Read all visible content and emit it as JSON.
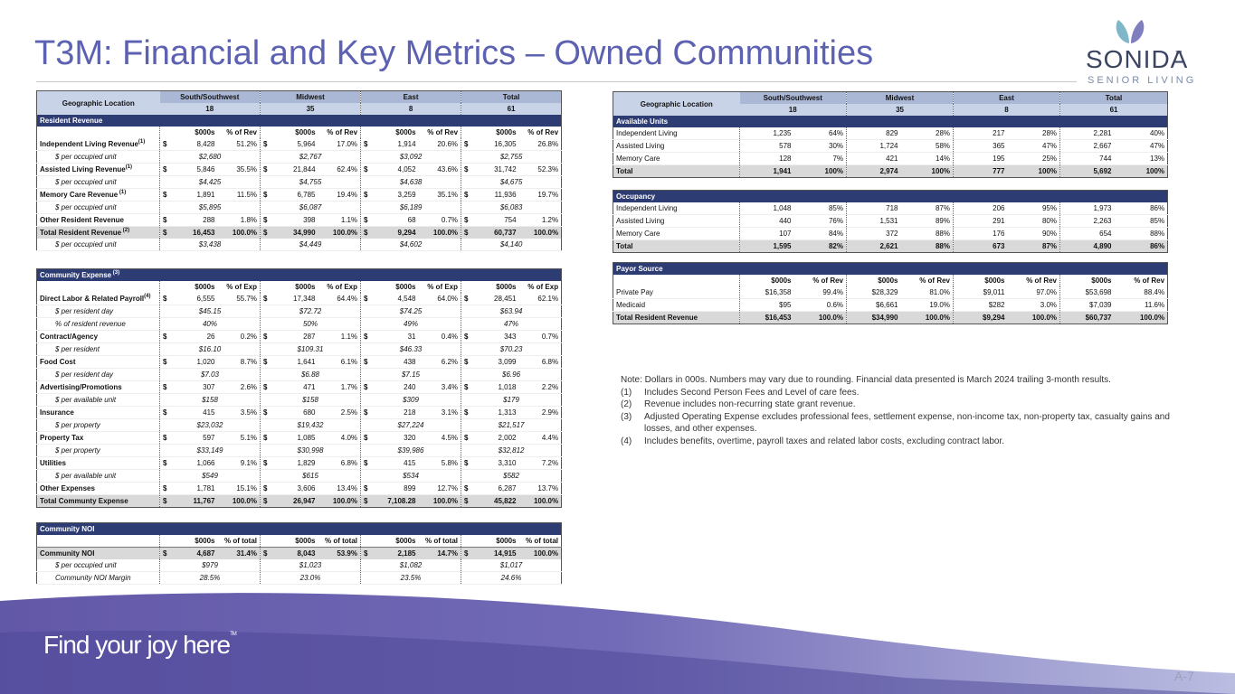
{
  "title": "T3M: Financial and Key Metrics – Owned Communities",
  "logo": {
    "name": "SONIDA",
    "tm": "TM",
    "tagline": "SENIOR LIVING"
  },
  "slogan": "Find your joy here",
  "slogan_tm": "TM",
  "page": "A-7",
  "currency": "$",
  "header": {
    "geo": "Geographic Location",
    "regions": [
      {
        "name": "South/Southwest",
        "count": "18"
      },
      {
        "name": "Midwest",
        "count": "35"
      },
      {
        "name": "East",
        "count": "8"
      },
      {
        "name": "Total",
        "count": "61"
      }
    ]
  },
  "resident_revenue": {
    "title": "Resident Revenue",
    "columns": [
      "$000s",
      "% of Rev"
    ],
    "rows": [
      {
        "label": "Independent Living Revenue",
        "sup": "(1)",
        "values": [
          "8,428",
          "51.2%",
          "5,964",
          "17.0%",
          "1,914",
          "20.6%",
          "16,305",
          "26.8%"
        ]
      },
      {
        "label": "$ per occupied unit",
        "values": [
          "$2,680",
          "$2,767",
          "$3,092",
          "$2,755"
        ]
      },
      {
        "label": "Assisted Living Revenue",
        "sup": "(1)",
        "values": [
          "5,846",
          "35.5%",
          "21,844",
          "62.4%",
          "4,052",
          "43.6%",
          "31,742",
          "52.3%"
        ]
      },
      {
        "label": "$ per occupied unit",
        "values": [
          "$4,425",
          "$4,755",
          "$4,638",
          "$4,675"
        ]
      },
      {
        "label": "Memory Care Revenue",
        "sup": " (1)",
        "values": [
          "1,891",
          "11.5%",
          "6,785",
          "19.4%",
          "3,259",
          "35.1%",
          "11,936",
          "19.7%"
        ]
      },
      {
        "label": "$ per occupied unit",
        "values": [
          "$5,895",
          "$6,087",
          "$6,189",
          "$6,083"
        ]
      },
      {
        "label": "Other Resident Revenue",
        "values": [
          "288",
          "1.8%",
          "398",
          "1.1%",
          "68",
          "0.7%",
          "754",
          "1.2%"
        ]
      },
      {
        "label": "Total Resident Revenue",
        "sup": " (2)",
        "values": [
          "16,453",
          "100.0%",
          "34,990",
          "100.0%",
          "9,294",
          "100.0%",
          "60,737",
          "100.0%"
        ]
      },
      {
        "label": "$ per occupied unit",
        "values": [
          "$3,438",
          "$4,449",
          "$4,602",
          "$4,140"
        ]
      }
    ]
  },
  "community_expense": {
    "title": "Community Expense",
    "sup": " (3)",
    "columns": [
      "$000s",
      "% of Exp"
    ],
    "rows": [
      {
        "label": "Direct Labor & Related Payroll",
        "sup": "(4)",
        "values": [
          "6,555",
          "55.7%",
          "17,348",
          "64.4%",
          "4,548",
          "64.0%",
          "28,451",
          "62.1%"
        ]
      },
      {
        "label": "$ per resident day",
        "values": [
          "$45.15",
          "$72.72",
          "$74.25",
          "$63.94"
        ]
      },
      {
        "label": "% of resident revenue",
        "values": [
          "40%",
          "50%",
          "49%",
          "47%"
        ]
      },
      {
        "label": "Contract/Agency",
        "values": [
          "26",
          "0.2%",
          "287",
          "1.1%",
          "31",
          "0.4%",
          "343",
          "0.7%"
        ]
      },
      {
        "label": "$ per resident",
        "values": [
          "$16.10",
          "$109.31",
          "$46.33",
          "$70.23"
        ]
      },
      {
        "label": "Food Cost",
        "values": [
          "1,020",
          "8.7%",
          "1,641",
          "6.1%",
          "438",
          "6.2%",
          "3,099",
          "6.8%"
        ]
      },
      {
        "label": "$ per resident day",
        "values": [
          "$7.03",
          "$6.88",
          "$7.15",
          "$6.96"
        ]
      },
      {
        "label": "Advertising/Promotions",
        "values": [
          "307",
          "2.6%",
          "471",
          "1.7%",
          "240",
          "3.4%",
          "1,018",
          "2.2%"
        ]
      },
      {
        "label": "$ per available unit",
        "values": [
          "$158",
          "$158",
          "$309",
          "$179"
        ]
      },
      {
        "label": "Insurance",
        "values": [
          "415",
          "3.5%",
          "680",
          "2.5%",
          "218",
          "3.1%",
          "1,313",
          "2.9%"
        ]
      },
      {
        "label": "$ per property",
        "values": [
          "$23,032",
          "$19,432",
          "$27,224",
          "$21,517"
        ]
      },
      {
        "label": "Property Tax",
        "values": [
          "597",
          "5.1%",
          "1,085",
          "4.0%",
          "320",
          "4.5%",
          "2,002",
          "4.4%"
        ]
      },
      {
        "label": "$ per property",
        "values": [
          "$33,149",
          "$30,998",
          "$39,986",
          "$32,812"
        ]
      },
      {
        "label": "Utilities",
        "values": [
          "1,066",
          "9.1%",
          "1,829",
          "6.8%",
          "415",
          "5.8%",
          "3,310",
          "7.2%"
        ]
      },
      {
        "label": "$ per available unit",
        "values": [
          "$549",
          "$615",
          "$534",
          "$582"
        ]
      },
      {
        "label": "Other Expenses",
        "values": [
          "1,781",
          "15.1%",
          "3,606",
          "13.4%",
          "899",
          "12.7%",
          "6,287",
          "13.7%"
        ]
      },
      {
        "label": "Total Communty Expense",
        "values": [
          "11,767",
          "100.0%",
          "26,947",
          "100.0%",
          "7,108.28",
          "100.0%",
          "45,822",
          "100.0%"
        ]
      }
    ]
  },
  "community_noi": {
    "title": "Community NOI",
    "columns": [
      "$000s",
      "% of total"
    ],
    "rows": [
      {
        "label": "Community NOI",
        "values": [
          "4,687",
          "31.4%",
          "8,043",
          "53.9%",
          "2,185",
          "14.7%",
          "14,915",
          "100.0%"
        ]
      },
      {
        "label": "$ per occupied unit",
        "values": [
          "$979",
          "$1,023",
          "$1,082",
          "$1,017"
        ]
      },
      {
        "label": "Community NOI Margin",
        "values": [
          "28.5%",
          "23.0%",
          "23.5%",
          "24.6%"
        ]
      }
    ]
  },
  "available_units": {
    "title": "Available Units",
    "rows": [
      {
        "label": "Independent Living",
        "values": [
          "1,235",
          "64%",
          "829",
          "28%",
          "217",
          "28%",
          "2,281",
          "40%"
        ]
      },
      {
        "label": "Assisted Living",
        "values": [
          "578",
          "30%",
          "1,724",
          "58%",
          "365",
          "47%",
          "2,667",
          "47%"
        ]
      },
      {
        "label": "Memory Care",
        "values": [
          "128",
          "7%",
          "421",
          "14%",
          "195",
          "25%",
          "744",
          "13%"
        ]
      },
      {
        "label": "Total",
        "values": [
          "1,941",
          "100%",
          "2,974",
          "100%",
          "777",
          "100%",
          "5,692",
          "100%"
        ]
      }
    ]
  },
  "occupancy": {
    "title": "Occupancy",
    "rows": [
      {
        "label": "Independent Living",
        "values": [
          "1,048",
          "85%",
          "718",
          "87%",
          "206",
          "95%",
          "1,973",
          "86%"
        ]
      },
      {
        "label": "Assisted Living",
        "values": [
          "440",
          "76%",
          "1,531",
          "89%",
          "291",
          "80%",
          "2,263",
          "85%"
        ]
      },
      {
        "label": "Memory Care",
        "values": [
          "107",
          "84%",
          "372",
          "88%",
          "176",
          "90%",
          "654",
          "88%"
        ]
      },
      {
        "label": "Total",
        "values": [
          "1,595",
          "82%",
          "2,621",
          "88%",
          "673",
          "87%",
          "4,890",
          "86%"
        ]
      }
    ]
  },
  "payor_source": {
    "title": "Payor Source",
    "columns": [
      "$000s",
      "% of Rev"
    ],
    "rows": [
      {
        "label": "Private Pay",
        "values": [
          "$16,358",
          "99.4%",
          "$28,329",
          "81.0%",
          "$9,011",
          "97.0%",
          "$53,698",
          "88.4%"
        ]
      },
      {
        "label": "Medicaid",
        "values": [
          "$95",
          "0.6%",
          "$6,661",
          "19.0%",
          "$282",
          "3.0%",
          "$7,039",
          "11.6%"
        ]
      },
      {
        "label": "Total Resident Revenue",
        "values": [
          "$16,453",
          "100.0%",
          "$34,990",
          "100.0%",
          "$9,294",
          "100.0%",
          "$60,737",
          "100.0%"
        ]
      }
    ]
  },
  "notes": {
    "intro": "Note: Dollars in 000s. Numbers may vary due to rounding. Financial data presented is March 2024 trailing 3-month results.",
    "items": [
      {
        "num": "(1)",
        "text": "Includes Second Person Fees and Level of care fees."
      },
      {
        "num": "(2)",
        "text": "Revenue includes non-recurring state grant revenue."
      },
      {
        "num": "(3)",
        "text": "Adjusted Operating Expense excludes professional fees, settlement expense, non-income tax, non-property tax, casualty gains and losses, and other expenses."
      },
      {
        "num": "(4)",
        "text": "Includes benefits, overtime, payroll taxes and related labor costs, excluding contract labor."
      }
    ]
  }
}
